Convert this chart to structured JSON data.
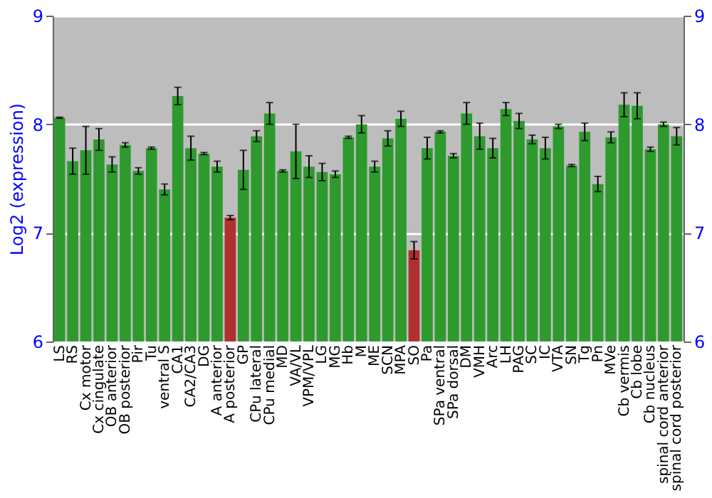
{
  "chart_data": {
    "type": "bar",
    "ylabel": "Log2 (expression)",
    "categories": [
      "LS",
      "RS",
      "Cx motor",
      "Cx cingulate",
      "OB anterior",
      "OB posterior",
      "Pir",
      "Tu",
      "ventral S",
      "CA1",
      "CA2/CA3",
      "DG",
      "A anterior",
      "A posterior",
      "GP",
      "CPu lateral",
      "CPu medial",
      "MD",
      "VA/VL",
      "VPM/VPL",
      "LG",
      "MG",
      "Hb",
      "M",
      "ME",
      "SCN",
      "MPA",
      "SO",
      "Pa",
      "SPa ventral",
      "SPa dorsal",
      "DM",
      "VMH",
      "Arc",
      "LH",
      "PAG",
      "SC",
      "IC",
      "VTA",
      "SN",
      "Tg",
      "Pn",
      "MVe",
      "Cb vermis",
      "Cb lobe",
      "Cb nucleus",
      "spinal cord anterior",
      "spinal cord posterior"
    ],
    "values": [
      8.06,
      7.66,
      7.76,
      7.86,
      7.63,
      7.81,
      7.57,
      7.78,
      7.4,
      8.26,
      7.78,
      7.73,
      7.61,
      7.14,
      7.58,
      7.89,
      8.1,
      7.57,
      7.75,
      7.61,
      7.56,
      7.54,
      7.88,
      8.0,
      7.61,
      7.87,
      8.05,
      6.84,
      7.78,
      7.93,
      7.71,
      8.1,
      7.89,
      7.78,
      8.14,
      8.03,
      7.86,
      7.78,
      7.98,
      7.62,
      7.93,
      7.45,
      7.88,
      8.18,
      8.17,
      7.77,
      8.0,
      7.89
    ],
    "errors": [
      0.005,
      0.12,
      0.22,
      0.1,
      0.07,
      0.02,
      0.03,
      0.01,
      0.05,
      0.08,
      0.11,
      0.01,
      0.05,
      0.02,
      0.18,
      0.05,
      0.1,
      0.01,
      0.25,
      0.1,
      0.08,
      0.03,
      0.01,
      0.08,
      0.05,
      0.07,
      0.07,
      0.08,
      0.1,
      0.01,
      0.02,
      0.1,
      0.12,
      0.09,
      0.06,
      0.07,
      0.04,
      0.1,
      0.02,
      0.01,
      0.08,
      0.07,
      0.05,
      0.11,
      0.12,
      0.02,
      0.02,
      0.08
    ],
    "colors": [
      "#2e9a2e",
      "#2e9a2e",
      "#2e9a2e",
      "#2e9a2e",
      "#2e9a2e",
      "#2e9a2e",
      "#2e9a2e",
      "#2e9a2e",
      "#2e9a2e",
      "#2e9a2e",
      "#2e9a2e",
      "#2e9a2e",
      "#2e9a2e",
      "#b03030",
      "#2e9a2e",
      "#2e9a2e",
      "#2e9a2e",
      "#2e9a2e",
      "#2e9a2e",
      "#2e9a2e",
      "#2e9a2e",
      "#2e9a2e",
      "#2e9a2e",
      "#2e9a2e",
      "#2e9a2e",
      "#2e9a2e",
      "#2e9a2e",
      "#b03030",
      "#2e9a2e",
      "#2e9a2e",
      "#2e9a2e",
      "#2e9a2e",
      "#2e9a2e",
      "#2e9a2e",
      "#2e9a2e",
      "#2e9a2e",
      "#2e9a2e",
      "#2e9a2e",
      "#2e9a2e",
      "#2e9a2e",
      "#2e9a2e",
      "#2e9a2e",
      "#2e9a2e",
      "#2e9a2e",
      "#2e9a2e",
      "#2e9a2e",
      "#2e9a2e",
      "#2e9a2e"
    ],
    "ylim": [
      6,
      9
    ],
    "yticks": [
      6,
      7,
      8,
      9
    ],
    "y2lim": [
      6,
      9
    ],
    "y2ticks": [
      6,
      7,
      8,
      9
    ],
    "grid": "y"
  }
}
